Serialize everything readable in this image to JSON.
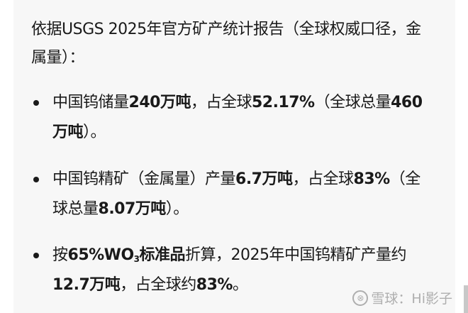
{
  "intro": {
    "line": "依据USGS 2025年官方矿产统计报告（全球权威口径，金属量）："
  },
  "bullets": [
    {
      "s0": "中国钨储量",
      "s1": "240万吨",
      "s2": "，占全球",
      "s3": "52.17%",
      "s4": "（全球总量",
      "s5": "460万吨",
      "s6": "）。"
    },
    {
      "s0": "中国钨精矿（金属量）产量",
      "s1": "6.7万吨",
      "s2": "，占全球",
      "s3": "83%",
      "s4": "（全球总量",
      "s5": "8.07万吨",
      "s6": "）。"
    },
    {
      "s0": "按",
      "s1": "65%WO",
      "s1sub": "3",
      "s1b": "标准品",
      "s2": "折算，2025年中国钨精矿产量约",
      "s3": "12.7万吨",
      "s4": "，占全球约",
      "s5": "83%",
      "s6": "。"
    }
  ],
  "watermark": {
    "logo": "⊗",
    "text": "雪球：Hi影子"
  }
}
